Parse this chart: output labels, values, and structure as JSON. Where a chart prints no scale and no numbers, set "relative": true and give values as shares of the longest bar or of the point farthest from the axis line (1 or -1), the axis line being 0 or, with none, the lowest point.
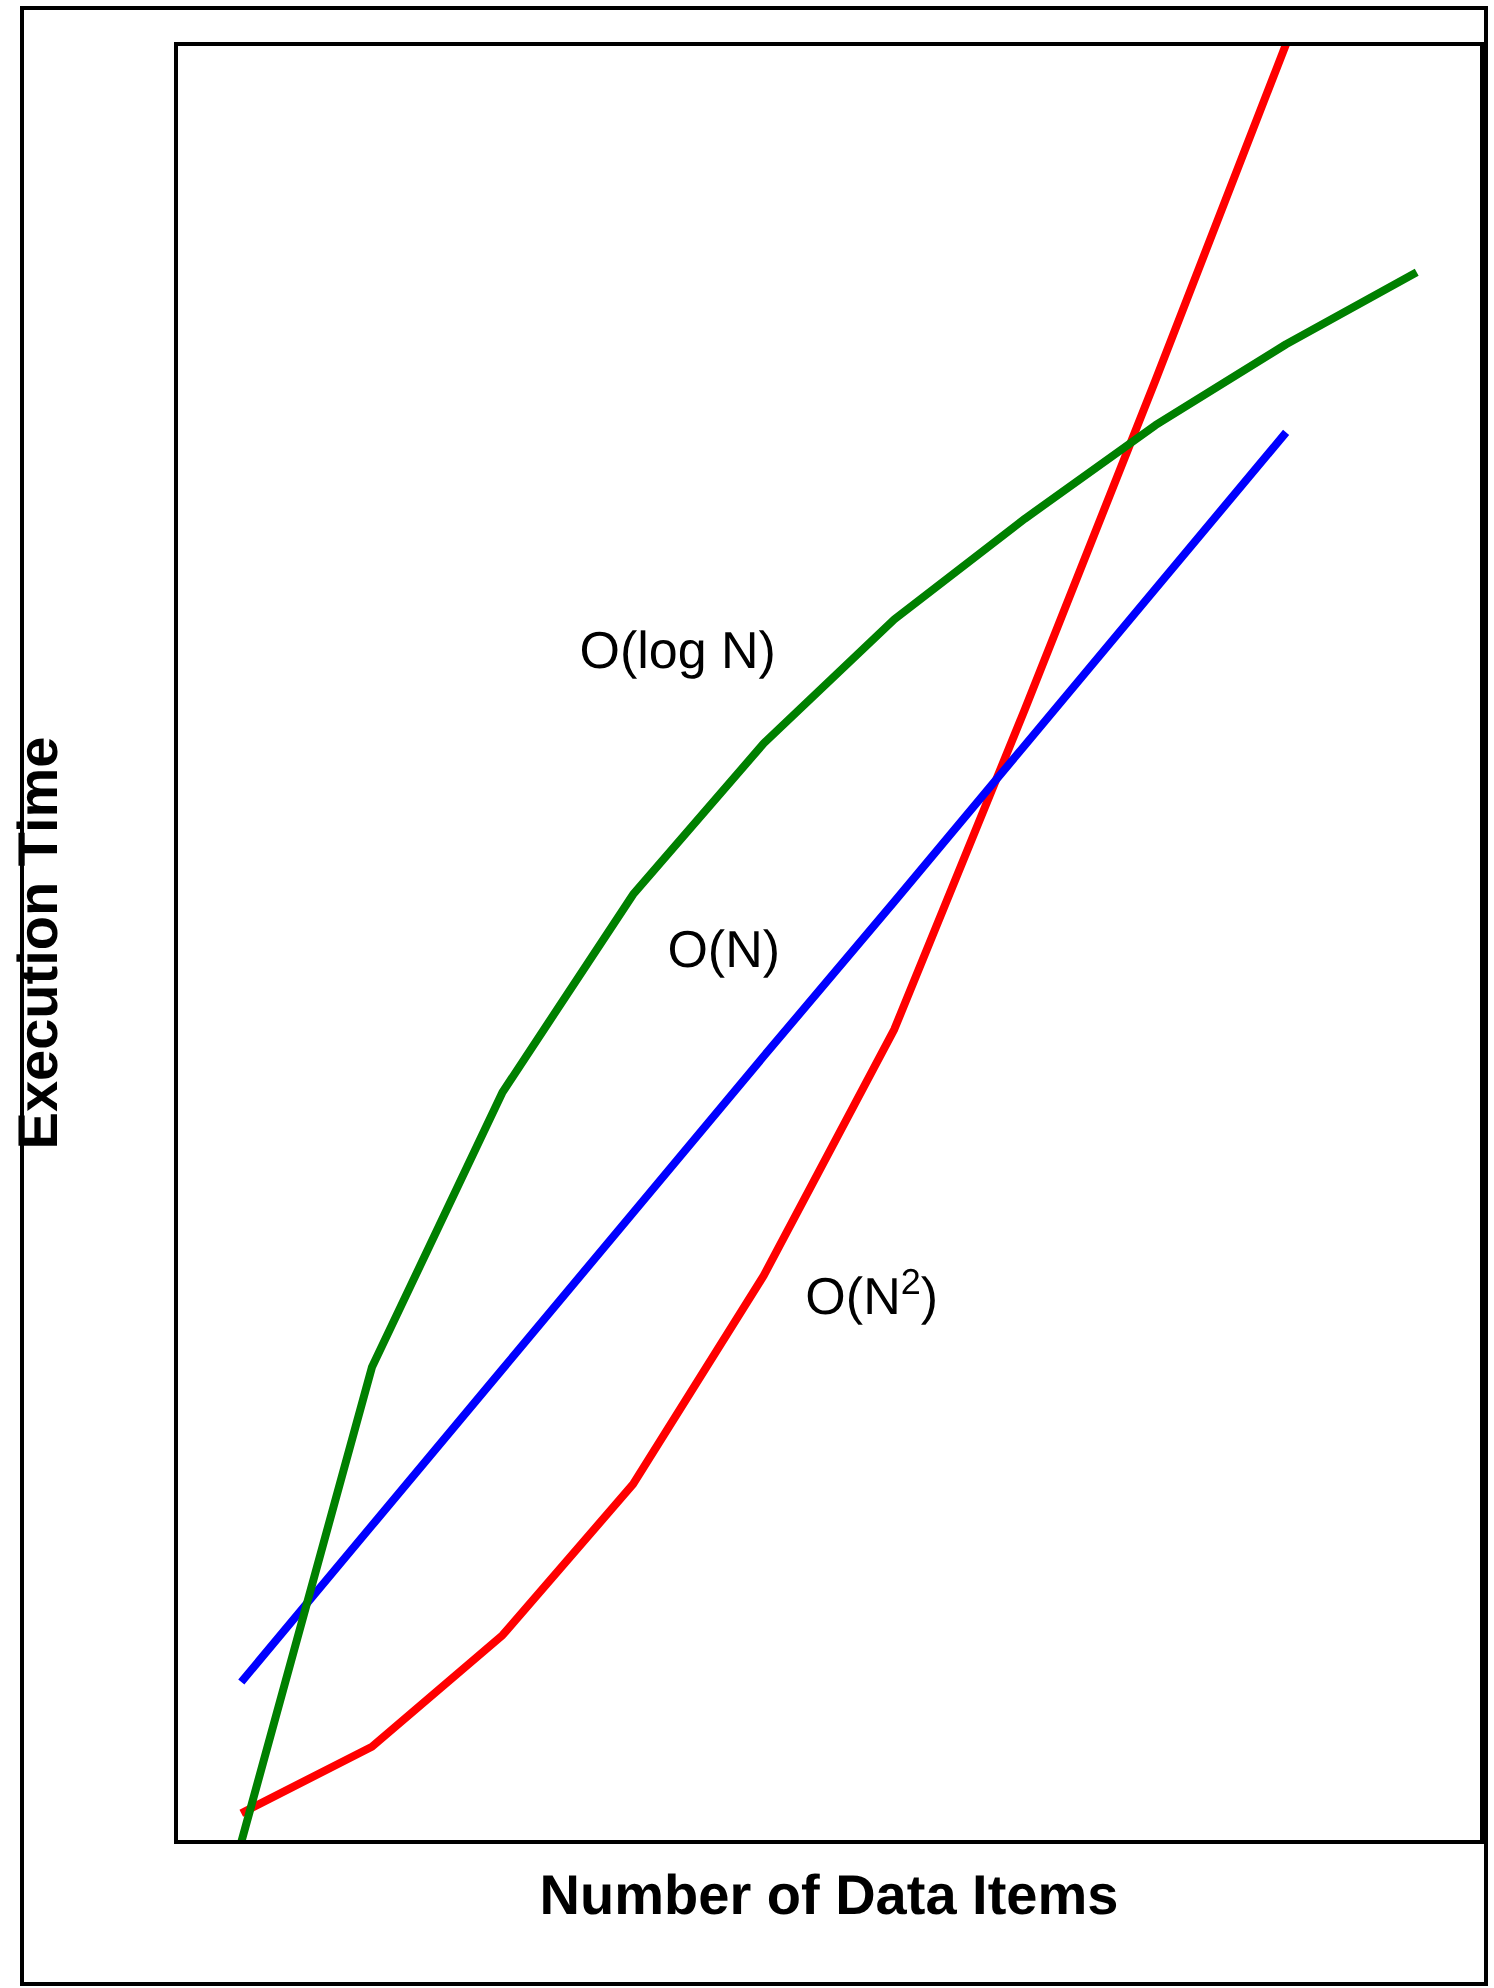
{
  "chart_data": {
    "type": "line",
    "relative": true,
    "xlabel": "Number of Data Items",
    "ylabel": "Execution Time",
    "categories": [
      null,
      null,
      null,
      null,
      null,
      null,
      null,
      null,
      null,
      null
    ],
    "grid": false,
    "legend": false,
    "marker": "none",
    "line_style": "solid",
    "series": [
      {
        "name": "O(log N)",
        "color": "#008000",
        "values": [
          0,
          0.264,
          0.417,
          0.527,
          0.611,
          0.68,
          0.736,
          0.788,
          0.833,
          0.873
        ]
      },
      {
        "name": "O(N)",
        "color": "#0000ff",
        "values": [
          0.089,
          0.176,
          0.263,
          0.35,
          0.437,
          0.523,
          0.61,
          0.697,
          0.784,
          null
        ]
      },
      {
        "name": "O(N$^{2}$)",
        "color": "#ff0000",
        "values": [
          0.016,
          0.053,
          0.115,
          0.199,
          0.315,
          0.452,
          0.63,
          0.813,
          1,
          null
        ]
      }
    ]
  }
}
